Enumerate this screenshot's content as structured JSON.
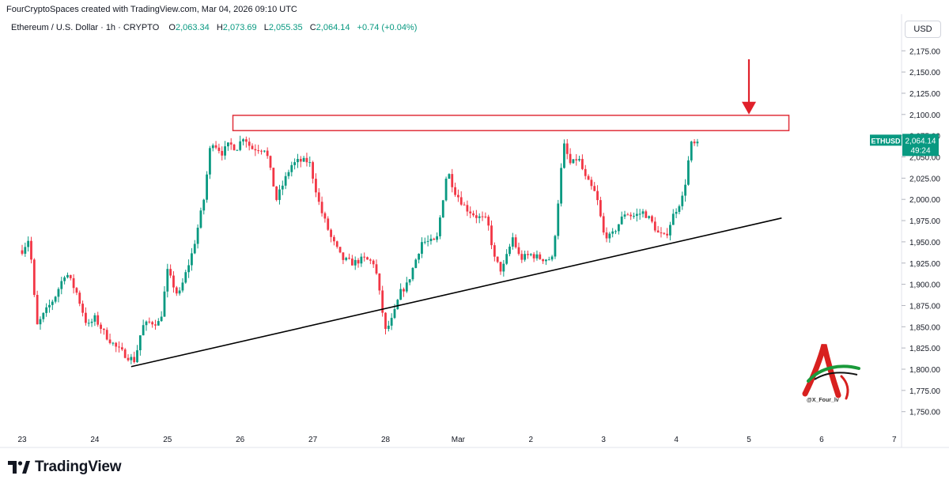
{
  "credit": "FourCryptoSpaces created with TradingView.com, Mar 04, 2026 09:10 UTC",
  "legend": {
    "symbol": "Ethereum / U.S. Dollar · 1h · CRYPTO",
    "o_label": "O",
    "o_value": "2,063.34",
    "h_label": "H",
    "h_value": "2,073.69",
    "l_label": "L",
    "l_value": "2,055.35",
    "c_label": "C",
    "c_value": "2,064.14",
    "change": "+0.74 (+0.04%)"
  },
  "currency_label": "USD",
  "price_tag": {
    "symbol": "ETHUSD",
    "price": "2,064.14",
    "countdown": "49:24"
  },
  "branding": {
    "tv_name": "TradingView",
    "watermark_handle": "@X_Four_lv"
  },
  "colors": {
    "up": "#089981",
    "down": "#f23645",
    "resistance": "#e0303a",
    "arrow": "#e0202a",
    "trendline": "#000000"
  },
  "chart_data": {
    "type": "candlestick",
    "timeframe": "1h",
    "y_ticks": [
      1750,
      1775,
      1800,
      1825,
      1850,
      1875,
      1900,
      1925,
      1950,
      1975,
      2000,
      2025,
      2050,
      2075,
      2100,
      2125,
      2150,
      2175
    ],
    "y_tick_labels": [
      "1,750.00",
      "1,775.00",
      "1,800.00",
      "1,825.00",
      "1,850.00",
      "1,875.00",
      "1,900.00",
      "1,925.00",
      "1,950.00",
      "1,975.00",
      "2,000.00",
      "2,025.00",
      "2,050.00",
      "2,075.00",
      "2,100.00",
      "2,125.00",
      "2,150.00",
      "2,175.00"
    ],
    "x_tick_labels": [
      "23",
      "24",
      "25",
      "26",
      "27",
      "28",
      "Mar",
      "2",
      "3",
      "4",
      "5",
      "6",
      "7"
    ],
    "x_tick_days": [
      0,
      1,
      2,
      3,
      4,
      5,
      6,
      7,
      8,
      9,
      10,
      11,
      12
    ],
    "ylim": [
      1735,
      2200
    ],
    "xlim_days": [
      -0.2,
      12.4
    ],
    "path_day": [
      0,
      0.1,
      0.2,
      0.3,
      0.45,
      0.6,
      0.75,
      0.9,
      1.0,
      1.15,
      1.3,
      1.45,
      1.55,
      1.65,
      1.75,
      1.9,
      2.0,
      2.15,
      2.35,
      2.5,
      2.6,
      2.75,
      2.85,
      2.95,
      3.05,
      3.15,
      3.35,
      3.5,
      3.7,
      3.8,
      3.95,
      4.1,
      4.25,
      4.4,
      4.55,
      4.7,
      4.85,
      5.0,
      5.1,
      5.2,
      5.3,
      5.5,
      5.7,
      5.85,
      5.95,
      6.1,
      6.25,
      6.4,
      6.5,
      6.6,
      6.75,
      6.85,
      7.0,
      7.15,
      7.3,
      7.45,
      7.55,
      7.65,
      7.75,
      7.9,
      8.0,
      8.1,
      8.3,
      8.4,
      8.55,
      8.65,
      8.75,
      8.85,
      8.95,
      9.1,
      9.2,
      9.3
    ],
    "path_price": [
      1940,
      1955,
      1850,
      1865,
      1885,
      1915,
      1890,
      1850,
      1860,
      1840,
      1825,
      1815,
      1810,
      1850,
      1855,
      1855,
      1915,
      1885,
      1940,
      2000,
      2070,
      2055,
      2065,
      2060,
      2075,
      2060,
      2060,
      2000,
      2040,
      2045,
      2045,
      1990,
      1955,
      1930,
      1925,
      1930,
      1925,
      1845,
      1860,
      1890,
      1900,
      1950,
      1950,
      2035,
      2010,
      1990,
      1980,
      1975,
      1930,
      1915,
      1955,
      1930,
      1935,
      1930,
      1930,
      2065,
      2040,
      2050,
      2025,
      2005,
      1960,
      1955,
      1985,
      1980,
      1985,
      1975,
      1960,
      1955,
      1980,
      2005,
      2065,
      2064
    ],
    "resistance_zone": {
      "x_start_day": 2.9,
      "x_end_day": 10.55,
      "low": 2081,
      "high": 2099
    },
    "trendline": {
      "start": {
        "day": 1.5,
        "price": 1803
      },
      "end": {
        "day": 10.45,
        "price": 1978
      }
    },
    "arrow": {
      "day": 10.0,
      "from_price": 2165,
      "to_price": 2100
    },
    "last_price": 2064.14
  }
}
